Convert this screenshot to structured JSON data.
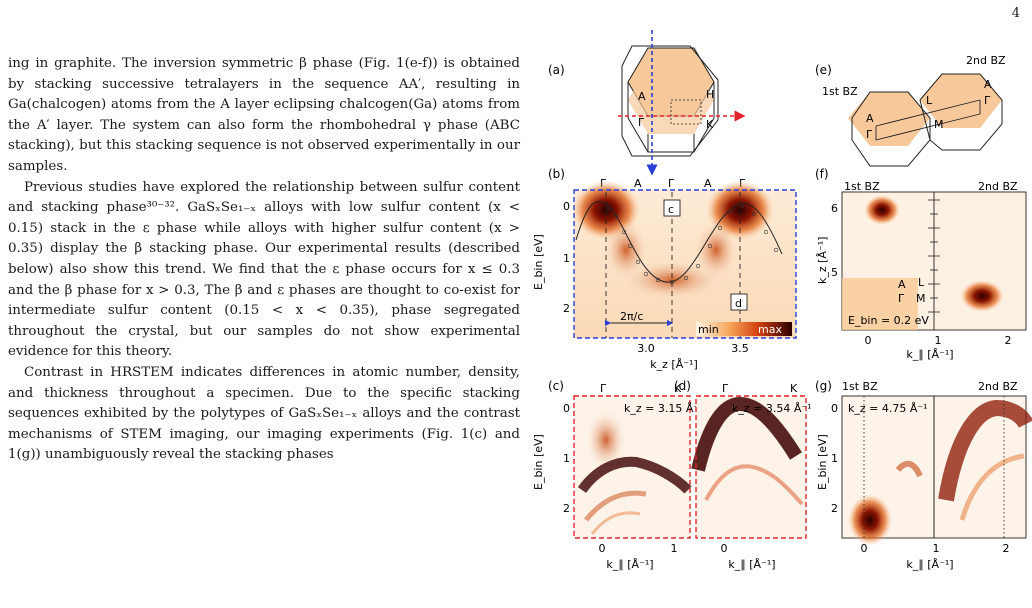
{
  "page_number": "4",
  "paragraphs": [
    "ing in graphite. The inversion symmetric β phase (Fig. 1(e-f)) is obtained by stacking successive tetralayers in the sequence AA′, resulting in Ga(chalcogen) atoms from the A layer eclipsing chalcogen(Ga) atoms from the A′ layer. The system can also form the rhombohedral γ phase (ABC stacking), but this stacking sequence is not observed experimentally in our samples.",
    "Previous studies have explored the relationship between sulfur content and stacking phase³⁰⁻³². GaSₓSe₁₋ₓ alloys with low sulfur content (x < 0.15) stack in the ε phase while alloys with higher sulfur content (x > 0.35) display the β stacking phase. Our experimental results (described below) also show this trend. We find that the ε phase occurs for x ≤ 0.3 and the β phase for x > 0.3, The β and ε phases are thought to co-exist for intermediate sulfur content (0.15 < x < 0.35), phase segregated throughout the crystal, but our samples do not show experimental evidence for this theory.",
    "Contrast in HRSTEM indicates differences in atomic number, density, and thickness throughout a specimen. Due to the specific stacking sequences exhibited by the polytypes of GaSₓSe₁₋ₓ alloys and the contrast mechanisms of STEM imaging, our imaging experiments (Fig. 1(c) and 1(g)) unambiguously reveal the stacking phases"
  ],
  "figure": {
    "panels": {
      "a": {
        "label": "(a)",
        "points": [
          "A",
          "H",
          "Γ",
          "K"
        ]
      },
      "b": {
        "label": "(b)",
        "top_points": [
          "Γ",
          "A",
          "Γ",
          "A",
          "Γ"
        ],
        "ylabel": "E_bin [eV]",
        "yticks": [
          "0",
          "1",
          "2"
        ],
        "xlabel": "k_z [Å⁻¹]",
        "xticks": [
          "3.0",
          "3.5"
        ],
        "period": "2π/c",
        "cut_c": "c",
        "cut_d": "d",
        "scale_min": "min",
        "scale_max": "max"
      },
      "c": {
        "label": "(c)",
        "top_points": [
          "Γ",
          "K"
        ],
        "kz": "k_z = 3.15 Å⁻¹",
        "ylabel": "E_bin [eV]",
        "yticks": [
          "0",
          "1",
          "2"
        ],
        "xticks": [
          "0",
          "1"
        ],
        "xlabel": "k_∥ [Å⁻¹]"
      },
      "d": {
        "label": "(d)",
        "top_points": [
          "Γ",
          "K"
        ],
        "kz": "k_z = 3.54 Å⁻¹",
        "xticks": [
          "0"
        ],
        "xlabel": "k_∥ [Å⁻¹]"
      },
      "e": {
        "label": "(e)",
        "bz1": "1st BZ",
        "bz2": "2nd BZ",
        "points": [
          "A",
          "Γ",
          "L",
          "M",
          "A",
          "Γ"
        ]
      },
      "f": {
        "label": "(f)",
        "bz1": "1st BZ",
        "bz2": "2nd BZ",
        "ylabel": "k_z [Å⁻¹]",
        "yticks": [
          "6",
          "5"
        ],
        "xticks": [
          "0",
          "1",
          "2"
        ],
        "xlabel": "k_∥ [Å⁻¹]",
        "ebin": "E_bin = 0.2 eV",
        "points": [
          "A",
          "Γ",
          "L",
          "M"
        ]
      },
      "g": {
        "label": "(g)",
        "bz1": "1st BZ",
        "bz2": "2nd BZ",
        "kz": "k_z = 4.75 Å⁻¹",
        "ylabel": "E_bin [eV]",
        "yticks": [
          "0",
          "1",
          "2"
        ],
        "xticks": [
          "0",
          "1",
          "2"
        ],
        "xlabel": "k_∥ [Å⁻¹]"
      }
    },
    "colors": {
      "cut_blue": "#2a3fd6",
      "cut_red": "#e0232b",
      "bz_fill": "#f7c99a",
      "intensity_max": "#3b0000",
      "intensity_mid": "#e2651a"
    }
  }
}
